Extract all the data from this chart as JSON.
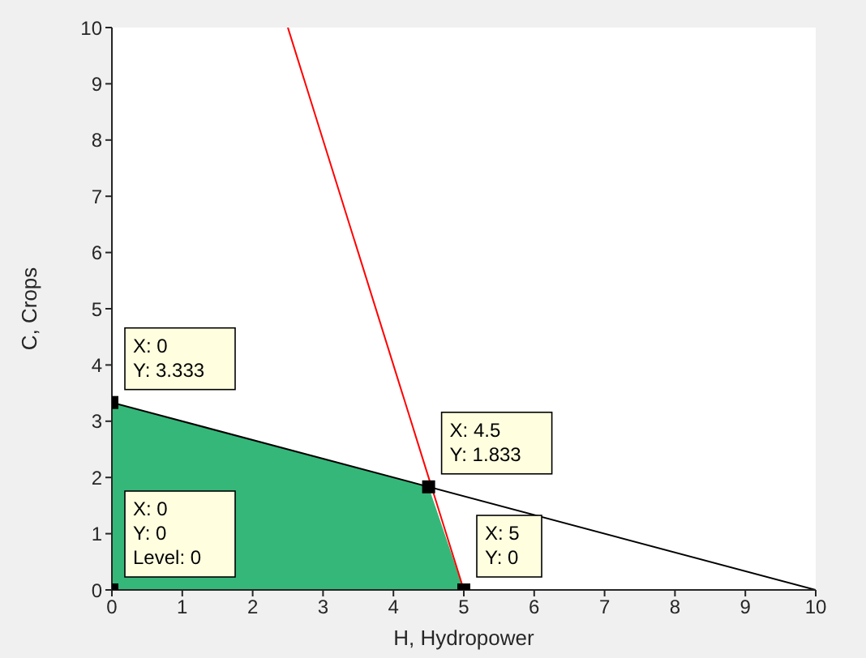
{
  "chart_data": {
    "type": "line",
    "xlabel": "H, Hydropower",
    "ylabel": "C, Crops",
    "xlim": [
      0,
      10
    ],
    "xticks": [
      0,
      1,
      2,
      3,
      4,
      5,
      6,
      7,
      8,
      9,
      10
    ],
    "ylim": [
      0,
      10
    ],
    "yticks": [
      0,
      1,
      2,
      3,
      4,
      5,
      6,
      7,
      8,
      9,
      10
    ],
    "grid": false,
    "legend": false,
    "series": [
      {
        "type": "area",
        "color": "#35b779",
        "x": [
          0,
          4.5,
          5
        ],
        "values": [
          3.333,
          1.833,
          0
        ]
      },
      {
        "color": "#000000",
        "x": [
          0,
          10
        ],
        "values": [
          3.333,
          0
        ]
      },
      {
        "color": "#ff0000",
        "x": [
          2.5,
          5
        ],
        "values": [
          10,
          0
        ]
      },
      {
        "type": "scatter",
        "color": "#000000",
        "marker": "square",
        "x": [
          0,
          4.5,
          5,
          0
        ],
        "values": [
          3.333,
          1.833,
          0,
          0
        ]
      }
    ],
    "annotations": [
      {
        "text": "X: 0\nY: 3.333",
        "x": 0,
        "y": 3.333
      },
      {
        "text": "X: 4.5\nY: 1.833",
        "x": 4.5,
        "y": 1.833
      },
      {
        "text": "X: 5\nY: 0",
        "x": 5,
        "y": 0
      },
      {
        "text": "X: 0\nY: 0\nLevel: 0",
        "x": 0,
        "y": 0
      }
    ]
  }
}
